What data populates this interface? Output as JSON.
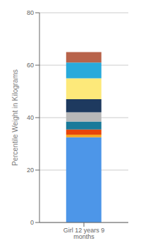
{
  "chart_data": {
    "type": "bar",
    "stacked": true,
    "categories": [
      "Girl 12 years 9 months"
    ],
    "series": [
      {
        "color": "#4d96e8",
        "values": [
          32.5
        ]
      },
      {
        "color": "#f5a623",
        "values": [
          1.0
        ]
      },
      {
        "color": "#e8450a",
        "values": [
          2.0
        ]
      },
      {
        "color": "#1a7a9a",
        "values": [
          3.0
        ]
      },
      {
        "color": "#b8b8b8",
        "values": [
          3.5
        ]
      },
      {
        "color": "#1e3a5f",
        "values": [
          5.0
        ]
      },
      {
        "color": "#fde97a",
        "values": [
          8.0
        ]
      },
      {
        "color": "#29aadb",
        "values": [
          6.0
        ]
      },
      {
        "color": "#b8634a",
        "values": [
          4.0
        ]
      }
    ],
    "ylabel": "Percentile Weight in Kilograms",
    "ylim": [
      0,
      80
    ],
    "yticks": [
      0,
      20,
      40,
      60,
      80
    ],
    "grid": true
  }
}
